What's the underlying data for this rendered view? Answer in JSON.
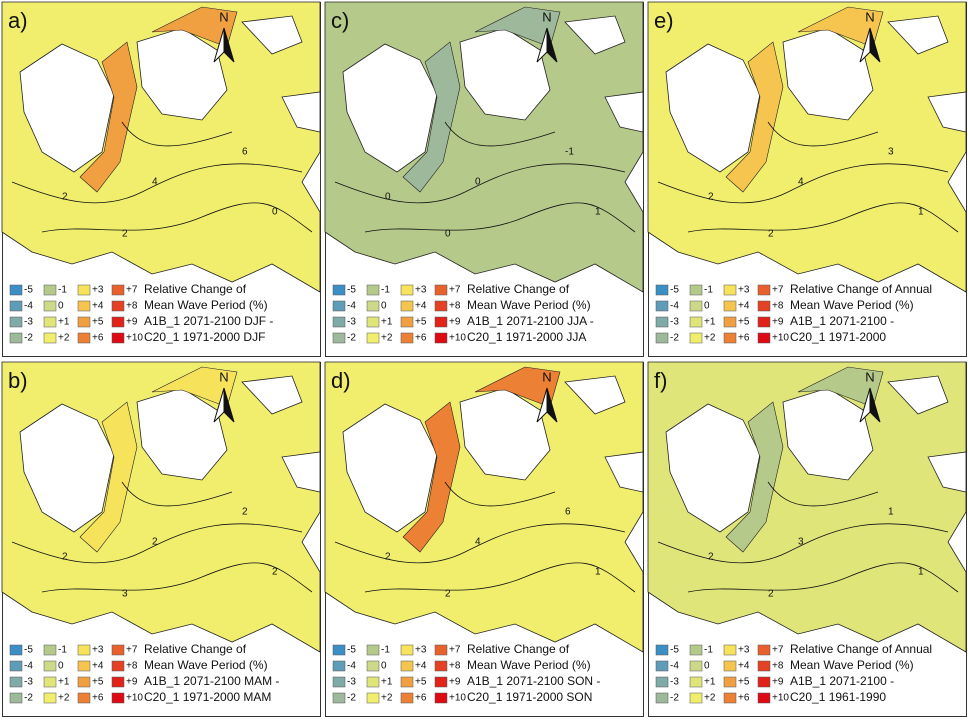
{
  "legend": [
    {
      "label": "-5",
      "color": "#3b8fc4"
    },
    {
      "label": "-4",
      "color": "#5f9cb8"
    },
    {
      "label": "-3",
      "color": "#7faaa8"
    },
    {
      "label": "-2",
      "color": "#9db89a"
    },
    {
      "label": "-1",
      "color": "#b5c98a"
    },
    {
      "label": "0",
      "color": "#cdd988"
    },
    {
      "label": "+1",
      "color": "#e0e57a"
    },
    {
      "label": "+2",
      "color": "#f1ee6e"
    },
    {
      "label": "+3",
      "color": "#f7e25c"
    },
    {
      "label": "+4",
      "color": "#f5c54f"
    },
    {
      "label": "+5",
      "color": "#f0a040"
    },
    {
      "label": "+6",
      "color": "#ec8034"
    },
    {
      "label": "+7",
      "color": "#e8602c"
    },
    {
      "label": "+8",
      "color": "#e44224"
    },
    {
      "label": "+9",
      "color": "#e0241c"
    },
    {
      "label": "+10",
      "color": "#dd0a14"
    }
  ],
  "north": "N",
  "panels": [
    {
      "label": "a)",
      "map_color": "#f1ee6e",
      "accent_color": "#f0a040",
      "contour_labels": [
        "2",
        "4",
        "6",
        "2",
        "0"
      ],
      "text": [
        "Relative Change of",
        "Mean Wave Period (%)",
        "A1B_1 2071-2100 DJF -",
        "C20_1 1971-2000 DJF"
      ]
    },
    {
      "label": "b)",
      "map_color": "#f1ee6e",
      "accent_color": "#f7e25c",
      "contour_labels": [
        "2",
        "2",
        "2",
        "3",
        "2"
      ],
      "text": [
        "Relative Change of",
        "Mean Wave Period (%)",
        "A1B_1 2071-2100 MAM -",
        "C20_1 1971-2000 MAM"
      ]
    },
    {
      "label": "c)",
      "map_color": "#b5c98a",
      "accent_color": "#9db89a",
      "contour_labels": [
        "0",
        "0",
        "-1",
        "0",
        "1"
      ],
      "text": [
        "Relative Change of",
        "Mean Wave Period (%)",
        "A1B_1 2071-2100 JJA -",
        "C20_1 1971-2000 JJA"
      ]
    },
    {
      "label": "d)",
      "map_color": "#f1ee6e",
      "accent_color": "#ec8034",
      "contour_labels": [
        "2",
        "4",
        "6",
        "2",
        "1"
      ],
      "text": [
        "Relative Change of",
        "Mean Wave Period (%)",
        "A1B_1 2071-2100 SON -",
        "C20_1 1971-2000 SON"
      ]
    },
    {
      "label": "e)",
      "map_color": "#f1ee6e",
      "accent_color": "#f5c54f",
      "contour_labels": [
        "2",
        "4",
        "3",
        "2",
        "1"
      ],
      "text": [
        "Relative Change of Annual",
        "Mean Wave Period (%)",
        "A1B_1 2071-2100 -",
        "C20_1 1971-2000"
      ]
    },
    {
      "label": "f)",
      "map_color": "#e0e57a",
      "accent_color": "#b5c98a",
      "contour_labels": [
        "2",
        "3",
        "1",
        "2",
        "1"
      ],
      "text": [
        "Relative Change of Annual",
        "Mean Wave Period (%)",
        "A1B_1 2071-2100 -",
        "C20_1 1961-1990"
      ]
    }
  ]
}
